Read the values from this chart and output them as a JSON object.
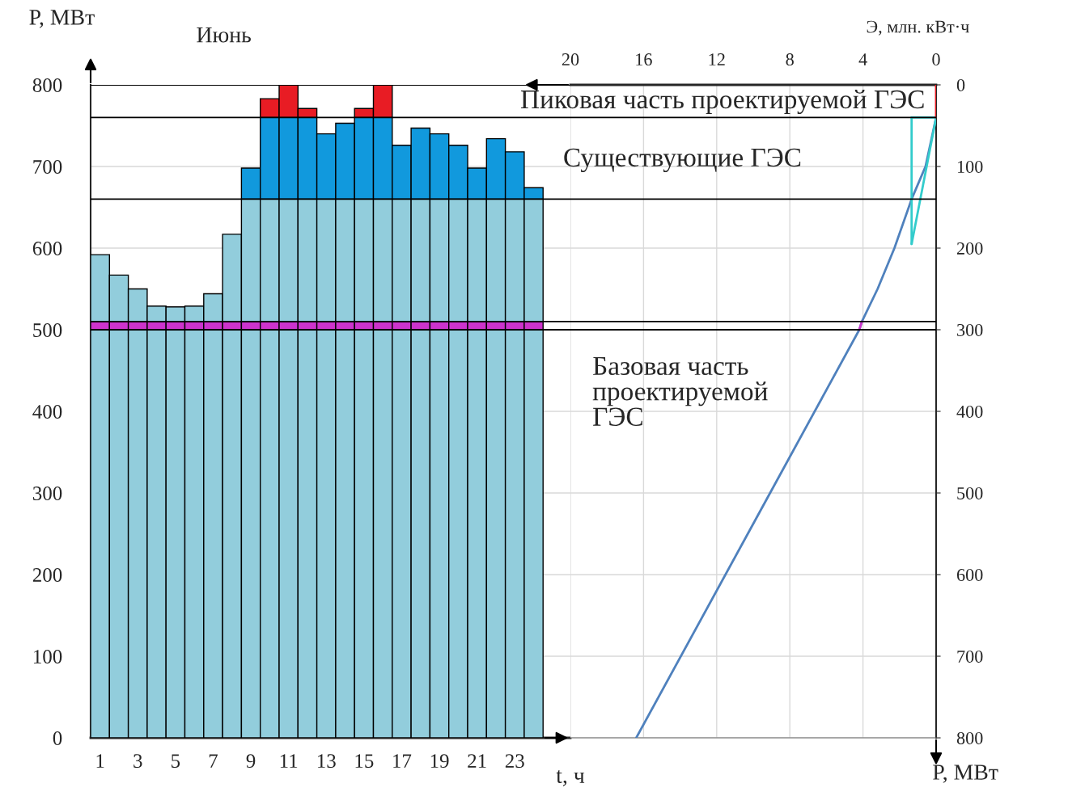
{
  "chart_data": [
    {
      "type": "bar",
      "title": "Июнь",
      "xlabel": "t, ч",
      "ylabel": "P, МВт",
      "stacked": true,
      "categories": [
        "1",
        null,
        "3",
        null,
        "5",
        null,
        "7",
        null,
        "9",
        null,
        "11",
        null,
        "13",
        null,
        "15",
        null,
        "17",
        null,
        "19",
        null,
        "21",
        null,
        "23",
        null
      ],
      "series": [
        {
          "color": "#92cddc",
          "values": [
            500,
            500,
            500,
            500,
            500,
            500,
            500,
            500,
            500,
            500,
            500,
            500,
            500,
            500,
            500,
            500,
            500,
            500,
            500,
            500,
            500,
            500,
            500,
            500
          ]
        },
        {
          "color": "#cc33cc",
          "values": [
            10,
            10,
            10,
            10,
            10,
            10,
            10,
            10,
            10,
            10,
            10,
            10,
            10,
            10,
            10,
            10,
            10,
            10,
            10,
            10,
            10,
            10,
            10,
            10
          ]
        },
        {
          "color": "#92cddc",
          "values": [
            82,
            57,
            40,
            19,
            18,
            19,
            34,
            107,
            150,
            150,
            150,
            150,
            150,
            150,
            150,
            150,
            150,
            150,
            150,
            150,
            150,
            150,
            150,
            150
          ]
        },
        {
          "color": "#1199dd",
          "values": [
            null,
            null,
            null,
            null,
            null,
            null,
            null,
            null,
            38,
            100,
            100,
            100,
            80,
            93,
            100,
            100,
            66,
            87,
            80,
            66,
            38,
            74,
            58,
            14
          ]
        },
        {
          "color": "#e81c24",
          "values": [
            null,
            null,
            null,
            null,
            null,
            null,
            null,
            null,
            null,
            23,
            40,
            11,
            null,
            null,
            11,
            40,
            null,
            null,
            null,
            null,
            null,
            null,
            null,
            null
          ]
        }
      ],
      "ylim": [
        0,
        800
      ],
      "yticks": [
        0,
        100,
        200,
        300,
        400,
        500,
        600,
        700,
        800
      ],
      "grid": "y",
      "ref_lines": [
        {
          "axis": "y",
          "value": 500,
          "color": "#000000"
        },
        {
          "axis": "y",
          "value": 510,
          "color": "#000000"
        },
        {
          "axis": "y",
          "value": 660,
          "color": "#000000"
        },
        {
          "axis": "y",
          "value": 760,
          "color": "#000000"
        },
        {
          "axis": "y",
          "value": 800,
          "color": "#000000"
        }
      ]
    },
    {
      "type": "line",
      "xlabel": "Э, млн. кВт·ч",
      "ylabel": "P, МВт",
      "series": [
        {
          "color": "#4f81bd",
          "x": [
            0,
            0.58,
            1.34,
            2.28,
            3.2,
            4.06,
            4.2,
            9.08,
            16.4
          ],
          "values": [
            40,
            100,
            140,
            200,
            250,
            290,
            300,
            500,
            800
          ]
        },
        {
          "color": "#33cccc",
          "x": [
            0,
            1.34
          ],
          "values": [
            40,
            40
          ]
        },
        {
          "color": "#33cccc",
          "x": [
            1.34,
            1.34
          ],
          "values": [
            40,
            195
          ]
        },
        {
          "color": "#33cccc",
          "x": [
            1.34,
            0
          ],
          "values": [
            195,
            40
          ]
        },
        {
          "color": "#e81c24",
          "x": [
            0,
            0
          ],
          "values": [
            0,
            40
          ]
        },
        {
          "color": "#cc33cc",
          "x": [
            4.06,
            4.2
          ],
          "values": [
            290,
            300
          ]
        }
      ],
      "xlim": [
        20,
        0
      ],
      "xticks": [
        20,
        16,
        12,
        8,
        4,
        0
      ],
      "ylim": [
        800,
        0
      ],
      "yticks": [
        0,
        100,
        200,
        300,
        400,
        500,
        600,
        700,
        800
      ],
      "grid": true,
      "ref_lines": [
        {
          "axis": "y",
          "value": 40,
          "color": "#000000"
        },
        {
          "axis": "y",
          "value": 140,
          "color": "#000000"
        },
        {
          "axis": "y",
          "value": 290,
          "color": "#000000"
        },
        {
          "axis": "y",
          "value": 300,
          "color": "#000000"
        }
      ],
      "annotations": [
        "Пиковая часть проектируемой ГЭС",
        "Существующие ГЭС",
        "Базовая часть\nпроектируемой\nГЭС"
      ]
    }
  ]
}
